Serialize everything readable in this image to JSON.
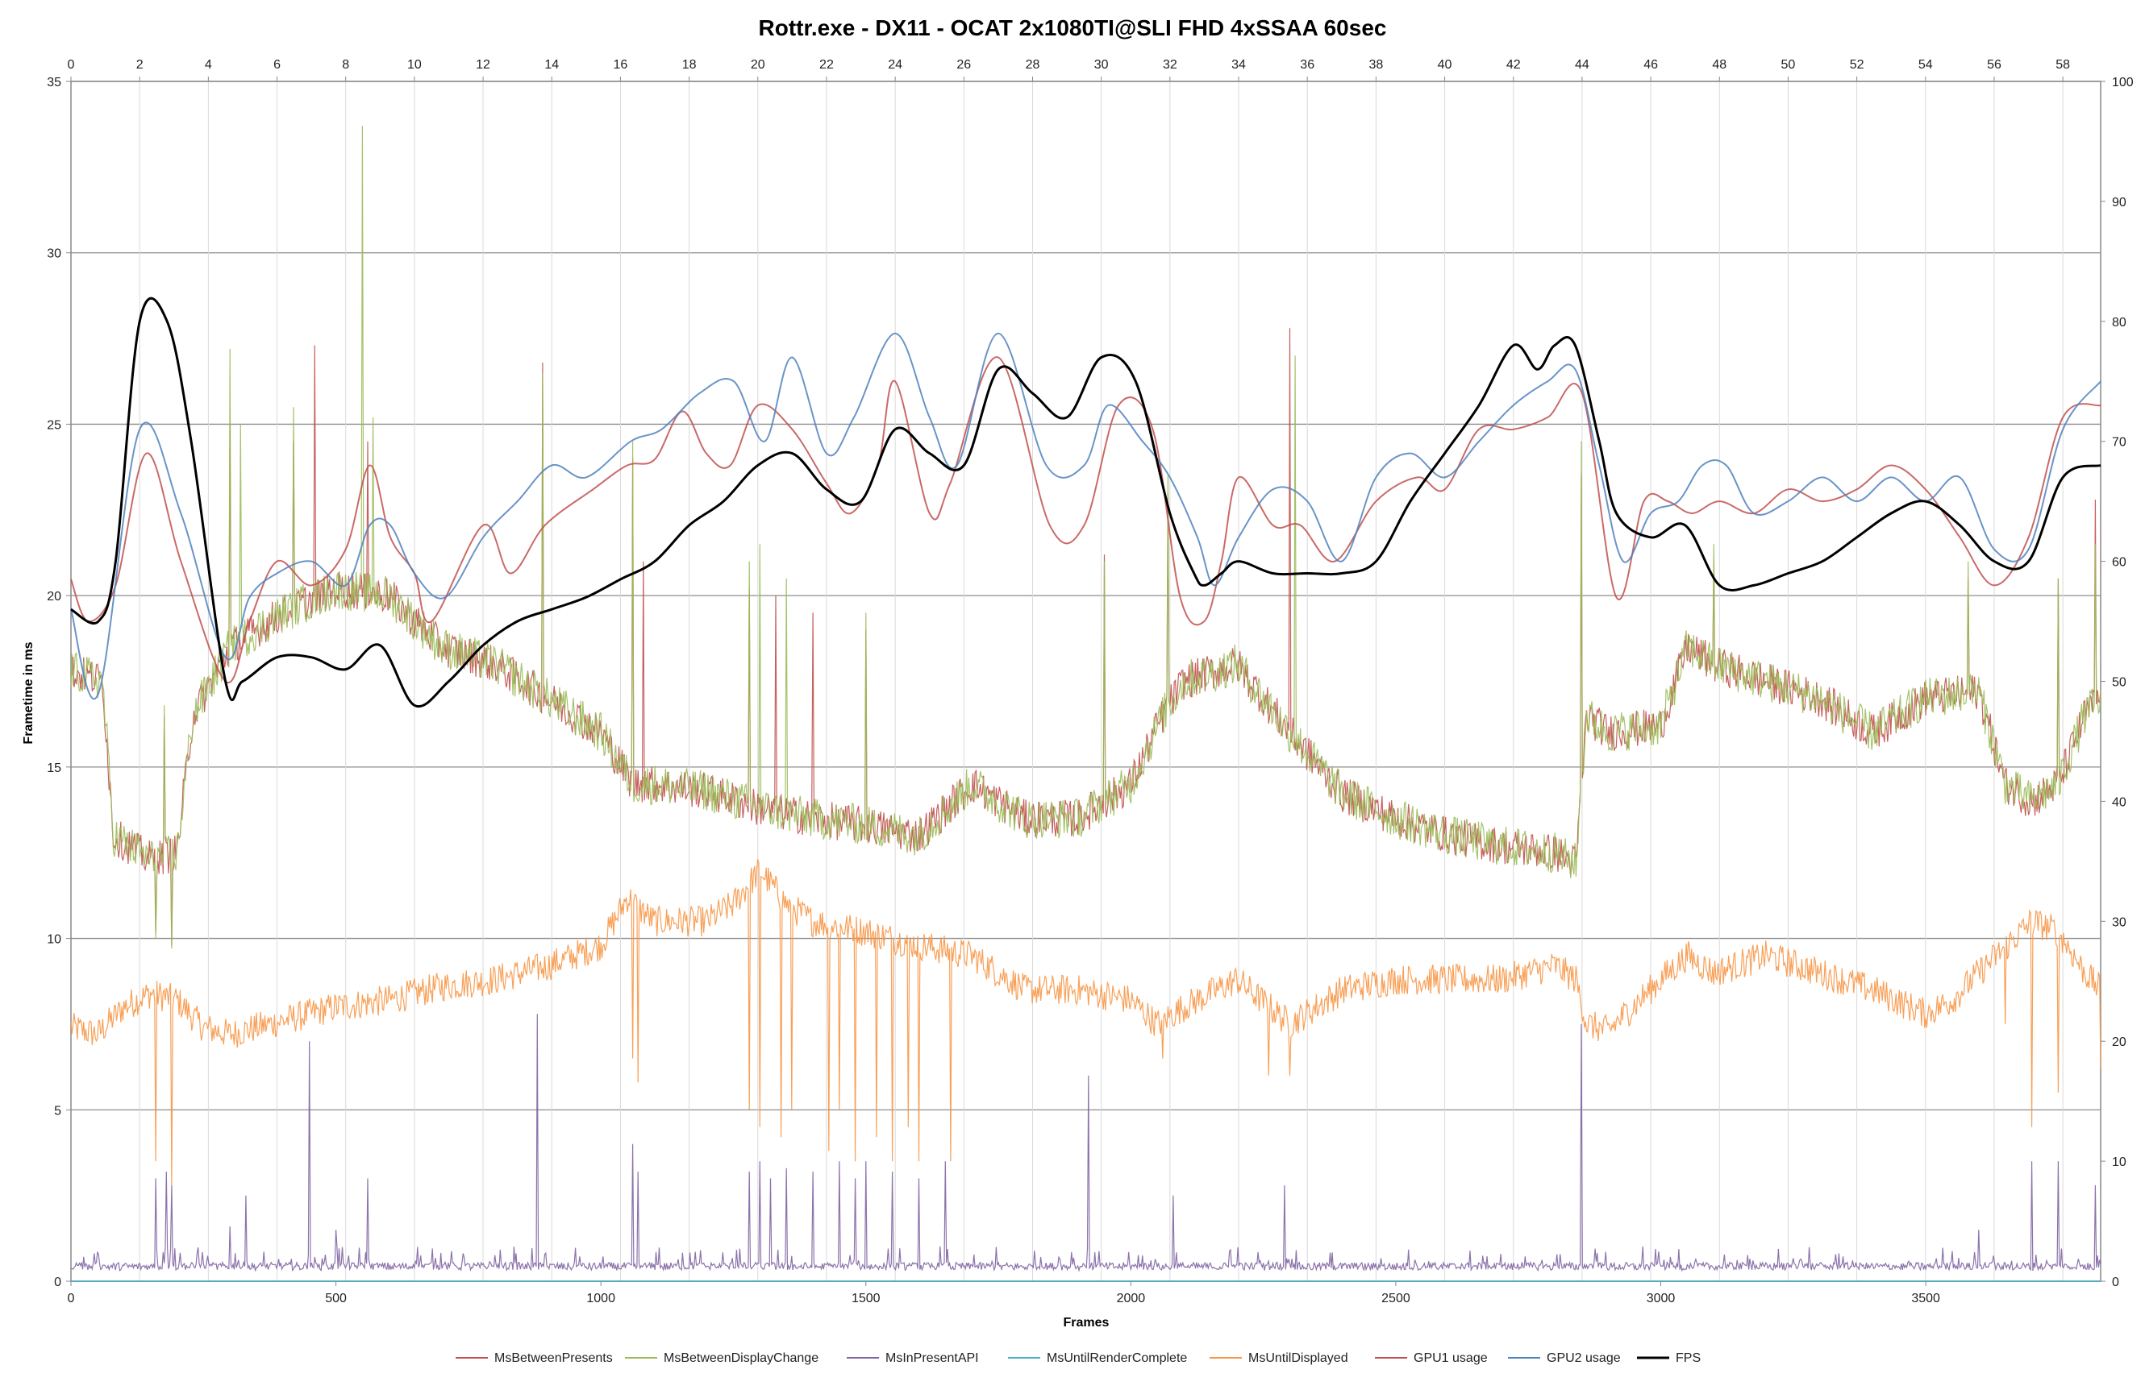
{
  "chart_data": {
    "type": "line",
    "title": "Rottr.exe - DX11 - OCAT 2x1080TI@SLI FHD 4xSSAA 60sec",
    "xlabel": "Frames",
    "ylabel": "Frametime in ms",
    "xlim": [
      0,
      3830
    ],
    "x2lim": [
      0,
      59.1
    ],
    "ylim": [
      0,
      35
    ],
    "y2lim": [
      0,
      100
    ],
    "x_ticks": [
      0,
      500,
      1000,
      1500,
      2000,
      2500,
      3000,
      3500
    ],
    "x2_ticks": [
      0,
      2,
      4,
      6,
      8,
      10,
      12,
      14,
      16,
      18,
      20,
      22,
      24,
      26,
      28,
      30,
      32,
      34,
      36,
      38,
      40,
      42,
      44,
      46,
      48,
      50,
      52,
      54,
      56,
      58
    ],
    "y_ticks": [
      0,
      5,
      10,
      15,
      20,
      25,
      30,
      35
    ],
    "y2_ticks": [
      0,
      10,
      20,
      30,
      40,
      50,
      60,
      70,
      80,
      90,
      100
    ],
    "grid": "horizontal major on primary axis, vertical major on top axis",
    "legend_position": "bottom",
    "series": [
      {
        "name": "MsBetweenPresents",
        "axis": "primary",
        "color": "#c0504d",
        "style": "noisy",
        "x": [
          0,
          60,
          80,
          150,
          200,
          230,
          300,
          400,
          500,
          600,
          700,
          800,
          900,
          1000,
          1060,
          1100,
          1200,
          1300,
          1400,
          1500,
          1600,
          1700,
          1800,
          1900,
          2000,
          2060,
          2100,
          2200,
          2300,
          2400,
          2500,
          2600,
          2700,
          2800,
          2840,
          2860,
          2900,
          3000,
          3050,
          3100,
          3200,
          3300,
          3400,
          3500,
          3600,
          3650,
          3700,
          3750,
          3800,
          3830
        ],
        "values": [
          17.8,
          17.5,
          13.0,
          12.3,
          12.5,
          16.5,
          18.5,
          19.5,
          20.2,
          20.0,
          18.5,
          18.0,
          17.0,
          16.0,
          14.5,
          14.5,
          14.3,
          13.8,
          13.5,
          13.3,
          13.0,
          14.5,
          13.5,
          13.5,
          14.5,
          16.5,
          17.5,
          18.0,
          16.0,
          14.2,
          13.5,
          13.0,
          12.7,
          12.5,
          12.2,
          16.5,
          16.0,
          16.2,
          18.5,
          18.0,
          17.5,
          17.0,
          16.0,
          17.0,
          17.2,
          14.5,
          14.0,
          14.5,
          16.5,
          17.0
        ],
        "spikes": [
          [
            160,
            10.2
          ],
          [
            175,
            16.5
          ],
          [
            190,
            9.8
          ],
          [
            300,
            25.0
          ],
          [
            420,
            24.5
          ],
          [
            460,
            27.3
          ],
          [
            560,
            24.5
          ],
          [
            890,
            26.8
          ],
          [
            1060,
            24.0
          ],
          [
            1080,
            21.0
          ],
          [
            1280,
            20.2
          ],
          [
            1330,
            20.0
          ],
          [
            1400,
            19.5
          ],
          [
            1500,
            19.0
          ],
          [
            1950,
            21.2
          ],
          [
            2070,
            23.0
          ],
          [
            2300,
            27.8
          ],
          [
            2850,
            23.5
          ],
          [
            3100,
            21.0
          ],
          [
            3580,
            20.5
          ],
          [
            3750,
            20.5
          ],
          [
            3820,
            22.8
          ]
        ]
      },
      {
        "name": "MsBetweenDisplayChange",
        "axis": "primary",
        "color": "#9bbb59",
        "style": "noisy",
        "x": [
          0,
          60,
          80,
          150,
          200,
          230,
          300,
          400,
          500,
          600,
          700,
          800,
          900,
          1000,
          1060,
          1100,
          1200,
          1300,
          1400,
          1500,
          1600,
          1700,
          1800,
          1900,
          2000,
          2060,
          2100,
          2200,
          2300,
          2400,
          2500,
          2600,
          2700,
          2800,
          2840,
          2860,
          2900,
          3000,
          3050,
          3100,
          3200,
          3300,
          3400,
          3500,
          3600,
          3650,
          3700,
          3750,
          3800,
          3830
        ],
        "values": [
          17.8,
          17.5,
          13.0,
          12.3,
          12.5,
          16.5,
          18.5,
          19.5,
          20.2,
          20.0,
          18.5,
          18.0,
          17.0,
          16.0,
          14.5,
          14.5,
          14.3,
          13.8,
          13.5,
          13.3,
          13.0,
          14.5,
          13.5,
          13.5,
          14.5,
          16.5,
          17.5,
          18.0,
          16.0,
          14.2,
          13.5,
          13.0,
          12.7,
          12.5,
          12.2,
          16.5,
          16.0,
          16.2,
          18.5,
          18.0,
          17.5,
          17.0,
          16.0,
          17.0,
          17.2,
          14.5,
          14.0,
          14.5,
          16.5,
          17.0
        ],
        "spikes": [
          [
            160,
            10.0
          ],
          [
            175,
            16.8
          ],
          [
            190,
            9.7
          ],
          [
            300,
            27.2
          ],
          [
            320,
            25.0
          ],
          [
            420,
            25.5
          ],
          [
            550,
            33.7
          ],
          [
            570,
            25.2
          ],
          [
            890,
            26.5
          ],
          [
            1060,
            24.5
          ],
          [
            1280,
            21.0
          ],
          [
            1300,
            21.5
          ],
          [
            1350,
            20.5
          ],
          [
            1500,
            19.5
          ],
          [
            1950,
            21.0
          ],
          [
            2070,
            23.5
          ],
          [
            2310,
            27.0
          ],
          [
            2850,
            24.5
          ],
          [
            3100,
            21.5
          ],
          [
            3580,
            21.0
          ],
          [
            3750,
            20.5
          ],
          [
            3820,
            21.5
          ]
        ]
      },
      {
        "name": "MsInPresentAPI",
        "axis": "primary",
        "color": "#8064a2",
        "style": "noisy",
        "x": [
          0,
          1000,
          2000,
          3000,
          3830
        ],
        "values": [
          0.3,
          0.3,
          0.3,
          0.3,
          0.3
        ],
        "spikes": [
          [
            160,
            3.0
          ],
          [
            180,
            3.2
          ],
          [
            190,
            2.8
          ],
          [
            300,
            1.6
          ],
          [
            330,
            2.5
          ],
          [
            450,
            7.0
          ],
          [
            500,
            1.5
          ],
          [
            560,
            3.0
          ],
          [
            880,
            7.8
          ],
          [
            1060,
            4.0
          ],
          [
            1070,
            3.2
          ],
          [
            1280,
            3.2
          ],
          [
            1300,
            3.5
          ],
          [
            1320,
            3.0
          ],
          [
            1350,
            3.3
          ],
          [
            1400,
            3.2
          ],
          [
            1450,
            3.5
          ],
          [
            1480,
            3.0
          ],
          [
            1500,
            3.5
          ],
          [
            1550,
            3.2
          ],
          [
            1600,
            3.0
          ],
          [
            1650,
            3.5
          ],
          [
            1920,
            6.0
          ],
          [
            2080,
            2.5
          ],
          [
            2290,
            2.8
          ],
          [
            2850,
            7.5
          ],
          [
            3600,
            1.5
          ],
          [
            3700,
            3.5
          ],
          [
            3750,
            3.5
          ],
          [
            3820,
            2.8
          ]
        ]
      },
      {
        "name": "MsUntilRenderComplete",
        "axis": "primary",
        "color": "#4bacc6",
        "style": "smooth",
        "x": [
          0,
          3830
        ],
        "values": [
          0,
          0
        ]
      },
      {
        "name": "MsUntilDisplayed",
        "axis": "primary",
        "color": "#f79646",
        "style": "noisy",
        "x": [
          0,
          50,
          100,
          150,
          200,
          250,
          300,
          400,
          500,
          600,
          700,
          800,
          900,
          1000,
          1050,
          1100,
          1200,
          1250,
          1300,
          1350,
          1400,
          1500,
          1600,
          1700,
          1800,
          1900,
          2000,
          2050,
          2100,
          2200,
          2300,
          2400,
          2500,
          2600,
          2700,
          2800,
          2840,
          2860,
          2900,
          3000,
          3050,
          3100,
          3200,
          3300,
          3400,
          3500,
          3550,
          3600,
          3700,
          3750,
          3800,
          3830
        ],
        "values": [
          7.4,
          7.2,
          8.0,
          8.4,
          8.2,
          7.4,
          7.2,
          7.6,
          8.0,
          8.2,
          8.6,
          8.8,
          9.2,
          9.8,
          11.2,
          10.5,
          10.5,
          11.0,
          12.0,
          11.0,
          10.5,
          10.2,
          9.8,
          9.5,
          8.5,
          8.5,
          8.2,
          7.5,
          8.0,
          8.8,
          7.5,
          8.5,
          8.8,
          8.8,
          8.8,
          9.2,
          8.8,
          7.5,
          7.3,
          8.8,
          9.5,
          9.0,
          9.5,
          9.0,
          8.5,
          7.8,
          8.2,
          9.0,
          10.5,
          10.2,
          9.0,
          8.5
        ],
        "spikes": [
          [
            160,
            3.5
          ],
          [
            175,
            8.5
          ],
          [
            190,
            2.8
          ],
          [
            1060,
            6.5
          ],
          [
            1070,
            5.8
          ],
          [
            1280,
            5.0
          ],
          [
            1300,
            4.5
          ],
          [
            1340,
            4.2
          ],
          [
            1360,
            5.0
          ],
          [
            1430,
            3.8
          ],
          [
            1450,
            5.0
          ],
          [
            1480,
            3.5
          ],
          [
            1520,
            4.2
          ],
          [
            1550,
            3.5
          ],
          [
            1580,
            4.5
          ],
          [
            1600,
            3.5
          ],
          [
            1660,
            3.5
          ],
          [
            2060,
            6.5
          ],
          [
            2260,
            6.0
          ],
          [
            2300,
            6.0
          ],
          [
            3650,
            7.5
          ],
          [
            3700,
            4.5
          ],
          [
            3750,
            5.5
          ],
          [
            3830,
            6.2
          ]
        ]
      },
      {
        "name": "GPU1 usage",
        "axis": "secondary",
        "color": "#c0504d",
        "style": "smooth",
        "x": [
          0,
          0.5,
          1.3,
          2.2,
          3.2,
          4.5,
          5.2,
          6,
          7,
          8,
          8.7,
          9.3,
          10,
          10.5,
          12,
          12.8,
          13.8,
          15.2,
          16.2,
          17,
          17.8,
          18.5,
          19.2,
          20,
          21,
          22,
          22.7,
          23.5,
          24,
          25,
          25.6,
          27,
          28.5,
          29.5,
          30.5,
          31.5,
          32.3,
          33,
          33.5,
          34,
          35,
          35.8,
          36.8,
          38,
          39.2,
          40,
          41,
          42,
          43,
          44,
          45,
          45.8,
          46.5,
          47.2,
          48,
          49,
          50,
          51,
          52,
          53,
          54,
          55,
          56,
          57,
          58,
          59.1
        ],
        "values": [
          58.5,
          55,
          58,
          69,
          60,
          50,
          55,
          60,
          58,
          61,
          68,
          62,
          59,
          55,
          63,
          59,
          63,
          66,
          68,
          68.5,
          72.5,
          69,
          68,
          73,
          71,
          66.5,
          64,
          68,
          75,
          64,
          66.5,
          77,
          63,
          63,
          73,
          71,
          57,
          55,
          60,
          67,
          63,
          63,
          60,
          65,
          67,
          66,
          71,
          71,
          72,
          74,
          57,
          65,
          65,
          64,
          65,
          64,
          66,
          65,
          66,
          68,
          66,
          62,
          58,
          62,
          72,
          73
        ]
      },
      {
        "name": "GPU2 usage",
        "axis": "secondary",
        "color": "#4f81bd",
        "style": "smooth",
        "x": [
          0,
          0.8,
          2,
          3.2,
          4.5,
          5.2,
          6,
          7,
          8,
          8.7,
          9.3,
          10,
          10.9,
          12,
          13,
          14,
          15,
          16.3,
          17.2,
          18.3,
          19.3,
          20.2,
          21,
          22,
          22.8,
          24,
          25,
          25.8,
          27,
          28.4,
          29.5,
          30.2,
          31.2,
          32,
          32.8,
          33.3,
          34,
          35,
          36,
          37,
          38,
          39,
          40,
          41,
          42,
          43,
          43.8,
          44.5,
          45.2,
          46,
          46.8,
          47.5,
          48.2,
          49,
          50,
          51,
          52,
          53,
          54,
          55,
          56,
          57,
          58,
          59.1
        ],
        "values": [
          56,
          49,
          71,
          64,
          52,
          57,
          59,
          60,
          58,
          63,
          63,
          59,
          57,
          62,
          65,
          68,
          67,
          70,
          71,
          74,
          75,
          70,
          77,
          69,
          72,
          79,
          72,
          68,
          79,
          68,
          68,
          73,
          70,
          67,
          62,
          58,
          62,
          66,
          65,
          60,
          67,
          69,
          67,
          70,
          73,
          75,
          76,
          68,
          60,
          64,
          65,
          68,
          68,
          64,
          65,
          67,
          65,
          67,
          65,
          67,
          61,
          61,
          71,
          75
        ]
      },
      {
        "name": "FPS",
        "axis": "secondary",
        "color": "#000000",
        "style": "smooth",
        "x": [
          0,
          0.8,
          1.3,
          2,
          2.8,
          3.5,
          4.5,
          5,
          6,
          7,
          8,
          9,
          10,
          11,
          12,
          13,
          14,
          15,
          16,
          17,
          18,
          19,
          20,
          21,
          22,
          23,
          24,
          25,
          26,
          27,
          28,
          29,
          30,
          31,
          32,
          32.7,
          33,
          33.5,
          34,
          35,
          36,
          37,
          38,
          39,
          40,
          41,
          42,
          42.7,
          43.2,
          43.8,
          44.5,
          45,
          46,
          47,
          48,
          49,
          50,
          51,
          52,
          53,
          54,
          55,
          56,
          57,
          58,
          59.1
        ],
        "values": [
          56,
          55,
          60,
          80,
          80,
          70,
          50,
          50,
          52,
          52,
          51,
          53,
          48,
          50,
          53,
          55,
          56,
          57,
          58.5,
          60,
          63,
          65,
          68,
          69,
          66,
          65,
          71,
          69,
          68,
          76,
          74,
          72,
          77,
          75,
          64,
          59,
          58,
          59,
          60,
          59,
          59,
          59,
          60,
          65,
          69,
          73,
          78,
          76,
          78,
          78,
          70,
          64,
          62,
          63,
          58,
          58,
          59,
          60,
          62,
          64,
          65,
          63,
          60,
          60,
          67,
          68
        ]
      }
    ]
  }
}
